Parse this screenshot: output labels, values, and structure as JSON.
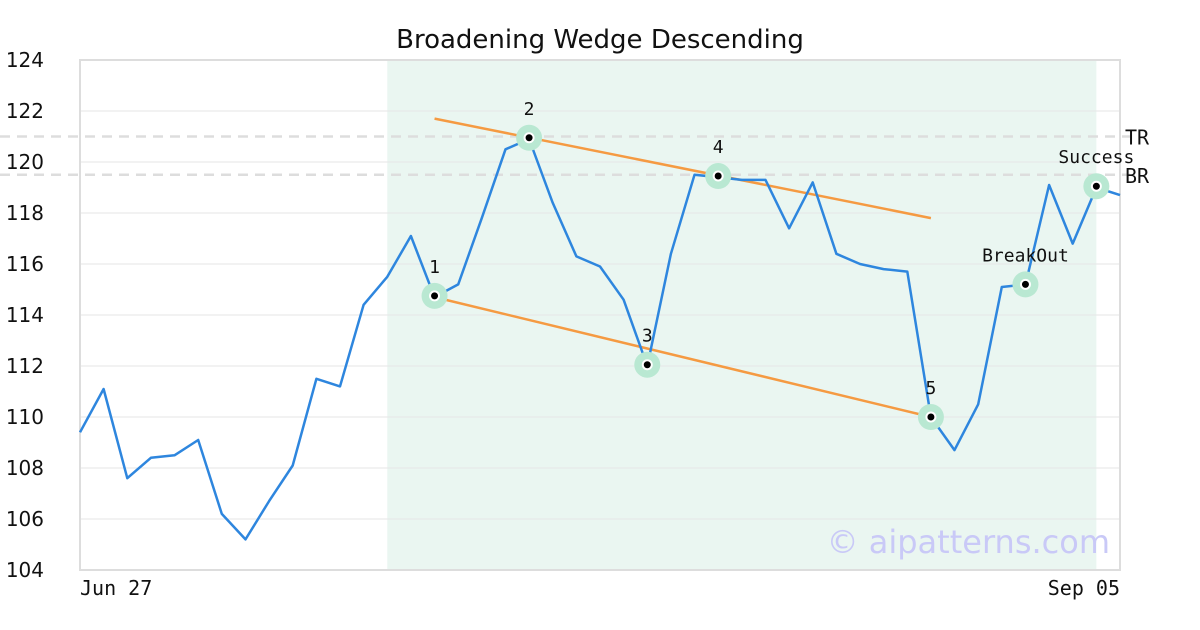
{
  "chart_data": {
    "type": "line",
    "title": "Broadening Wedge Descending",
    "ylim": [
      104,
      124
    ],
    "yticks": [
      104,
      106,
      108,
      110,
      112,
      114,
      116,
      118,
      120,
      122,
      124
    ],
    "x_labels": [
      "Jun 27",
      "Sep 05"
    ],
    "grid": true,
    "series": [
      {
        "values": [
          109.4,
          111.1,
          107.6,
          108.4,
          108.5,
          109.1,
          106.2,
          105.2,
          106.7,
          108.1,
          111.5,
          111.2,
          114.4,
          115.5,
          117.1,
          114.7,
          115.2,
          117.8,
          120.5,
          120.9,
          118.4,
          116.3,
          115.9,
          114.6,
          112.0,
          116.4,
          119.5,
          119.4,
          119.3,
          119.3,
          117.4,
          119.2,
          116.4,
          116.0,
          115.8,
          115.7,
          110.0,
          108.7,
          110.5,
          115.1,
          115.2,
          119.1,
          116.8,
          119.0,
          118.7
        ]
      }
    ],
    "highlight_region": {
      "start_index": 13,
      "end_index": 43
    },
    "trendlines": [
      {
        "start": [
          15,
          121.7
        ],
        "end": [
          36,
          117.8
        ]
      },
      {
        "start": [
          15,
          114.7
        ],
        "end": [
          36,
          110.0
        ]
      }
    ],
    "reference_lines": [
      {
        "label": "TR",
        "value": 121.0
      },
      {
        "label": "BR",
        "value": 119.5
      }
    ],
    "points": [
      {
        "label": "1",
        "index": 15,
        "value": 114.75
      },
      {
        "label": "2",
        "index": 19,
        "value": 120.95
      },
      {
        "label": "3",
        "index": 24,
        "value": 112.05
      },
      {
        "label": "4",
        "index": 27,
        "value": 119.45
      },
      {
        "label": "5",
        "index": 36,
        "value": 110.0
      },
      {
        "label": "BreakOut",
        "index": 40,
        "value": 115.2
      },
      {
        "label": "Success",
        "index": 43,
        "value": 119.05
      }
    ],
    "colors": {
      "line": "#2e86de",
      "trendline": "#f59a42",
      "region": "#eaf6f1",
      "marker_halo": "#b9e8d2",
      "reference": "#dddddd",
      "grid": "#e6e6e6",
      "frame": "#dddddd"
    }
  },
  "watermark": "© aipatterns.com"
}
